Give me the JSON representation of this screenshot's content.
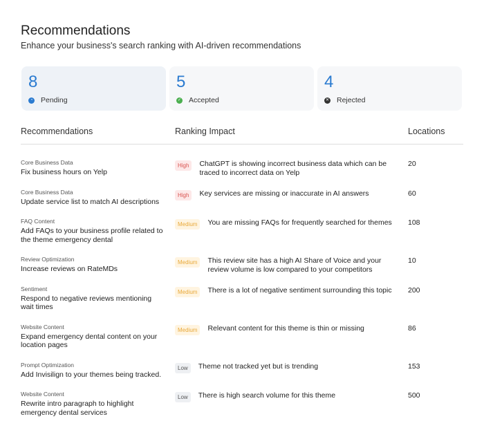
{
  "header": {
    "title": "Recommendations",
    "subtitle": "Enhance your business's search ranking with AI-driven recommendations"
  },
  "summary": [
    {
      "count": "8",
      "label": "Pending",
      "icon": "clock-icon",
      "color": "#2b7bd0"
    },
    {
      "count": "5",
      "label": "Accepted",
      "icon": "check-circle-icon",
      "color": "#4caf50"
    },
    {
      "count": "4",
      "label": "Rejected",
      "icon": "x-circle-icon",
      "color": "#333333"
    }
  ],
  "table": {
    "columns": [
      "Recommendations",
      "Ranking Impact",
      "Locations"
    ],
    "rows": [
      {
        "category": "Core Business Data",
        "title": "Fix business hours on Yelp",
        "impact": "High",
        "description": "ChatGPT is showing incorrect business data which can be traced to incorrect data on Yelp",
        "locations": "20"
      },
      {
        "category": "Core Business Data",
        "title": "Update service list to match AI descriptions",
        "impact": "High",
        "description": "Key services are missing or inaccurate in AI answers",
        "locations": "60"
      },
      {
        "category": "FAQ Content",
        "title": "Add FAQs to your business profile related to the theme emergency dental",
        "impact": "Medium",
        "description": "You are missing FAQs for frequently searched for themes",
        "locations": "108"
      },
      {
        "category": "Review Optimization",
        "title": "Increase reviews on RateMDs",
        "impact": "Medium",
        "description": "This review site has a high AI Share of Voice and your review volume is low compared to your competitors",
        "locations": "10"
      },
      {
        "category": "Sentiment",
        "title": "Respond to negative reviews mentioning wait times",
        "impact": "Medium",
        "description": "There is a lot of negative sentiment surrounding this topic",
        "locations": "200"
      },
      {
        "category": "Website Content",
        "title": "Expand emergency dental content on your location pages",
        "impact": "Medium",
        "description": "Relevant content for this theme is thin or missing",
        "locations": "86"
      },
      {
        "category": "Prompt Optimization",
        "title": "Add Invisilign to your themes being tracked.",
        "impact": "Low",
        "description": "Theme not tracked yet but is trending",
        "locations": "153"
      },
      {
        "category": "Website Content",
        "title": "Rewrite intro paragraph to highlight emergency dental services",
        "impact": "Low",
        "description": "There is high search volume for this theme",
        "locations": "500"
      }
    ]
  }
}
